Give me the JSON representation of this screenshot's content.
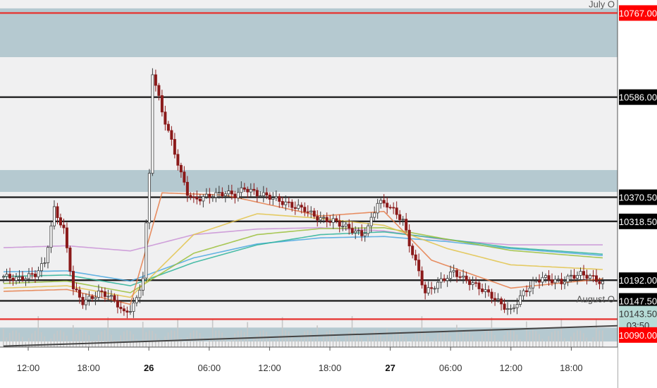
{
  "chart_data": {
    "type": "candlestick",
    "y_range": [
      10048,
      10795
    ],
    "x_ticks": [
      {
        "label": "12:00",
        "bold": false
      },
      {
        "label": "18:00",
        "bold": false
      },
      {
        "label": "26",
        "bold": true
      },
      {
        "label": "06:00",
        "bold": false
      },
      {
        "label": "12:00",
        "bold": false
      },
      {
        "label": "18:00",
        "bold": false
      },
      {
        "label": "27",
        "bold": true
      },
      {
        "label": "06:00",
        "bold": false
      },
      {
        "label": "12:00",
        "bold": false
      },
      {
        "label": "18:00",
        "bold": false
      }
    ],
    "annotations": [
      {
        "text": "July O",
        "price": 10787
      },
      {
        "text": "August O",
        "price": 10152
      }
    ],
    "zones": [
      {
        "from": 10672,
        "to": 10777,
        "color": "#b5c9d0"
      },
      {
        "from": 10382,
        "to": 10429,
        "color": "#b5c9d0"
      },
      {
        "from": 10060,
        "to": 10090,
        "color": "#b5c9d0"
      }
    ],
    "hlines": [
      {
        "price": 10767,
        "color": "#e53935"
      },
      {
        "price": 10586,
        "color": "#222222"
      },
      {
        "price": 10370.5,
        "color": "#222222"
      },
      {
        "price": 10318.5,
        "color": "#222222"
      },
      {
        "price": 10192,
        "color": "#222222"
      },
      {
        "price": 10147.5,
        "color": "#222222"
      },
      {
        "price": 10108,
        "color": "#e53935"
      }
    ],
    "price_labels": [
      {
        "text": "10767.00",
        "price": 10767,
        "bg": "#ff0000",
        "fg": "#ffffff"
      },
      {
        "text": "10586.00",
        "price": 10586,
        "bg": "#000000",
        "fg": "#ffffff"
      },
      {
        "text": "10370.50",
        "price": 10370.5,
        "bg": "#000000",
        "fg": "#ffffff"
      },
      {
        "text": "10318.50",
        "price": 10318.5,
        "bg": "#000000",
        "fg": "#ffffff"
      },
      {
        "text": "10192.00",
        "price": 10192,
        "bg": "#000000",
        "fg": "#ffffff"
      },
      {
        "text": "10147.50",
        "price": 10147.5,
        "bg": "#000000",
        "fg": "#ffffff"
      },
      {
        "text": "10143.50",
        "price": 10120,
        "bg": "#b6dcd7",
        "fg": "#333333"
      },
      {
        "text": "03:50",
        "price": 10095,
        "bg": "#b6dcd7",
        "fg": "#333333"
      },
      {
        "text": "10090.00",
        "price": 10074,
        "bg": "#ff0000",
        "fg": "#ffffff"
      }
    ],
    "close_path": [
      [
        0,
        10200
      ],
      [
        5,
        10195
      ],
      [
        10,
        10205
      ],
      [
        13,
        10230
      ],
      [
        16,
        10345
      ],
      [
        19,
        10300
      ],
      [
        22,
        10175
      ],
      [
        25,
        10145
      ],
      [
        28,
        10155
      ],
      [
        30,
        10165
      ],
      [
        33,
        10160
      ],
      [
        36,
        10140
      ],
      [
        38,
        10120
      ],
      [
        40,
        10130
      ],
      [
        42,
        10150
      ],
      [
        44,
        10200
      ],
      [
        46,
        10420
      ],
      [
        47,
        10640
      ],
      [
        50,
        10555
      ],
      [
        53,
        10490
      ],
      [
        56,
        10420
      ],
      [
        58,
        10380
      ],
      [
        60,
        10365
      ],
      [
        63,
        10370
      ],
      [
        66,
        10375
      ],
      [
        70,
        10380
      ],
      [
        73,
        10375
      ],
      [
        76,
        10390
      ],
      [
        80,
        10378
      ],
      [
        84,
        10372
      ],
      [
        88,
        10360
      ],
      [
        92,
        10350
      ],
      [
        95,
        10345
      ],
      [
        98,
        10330
      ],
      [
        101,
        10322
      ],
      [
        104,
        10320
      ],
      [
        107,
        10310
      ],
      [
        110,
        10300
      ],
      [
        113,
        10290
      ],
      [
        115,
        10305
      ],
      [
        118,
        10360
      ],
      [
        121,
        10355
      ],
      [
        124,
        10335
      ],
      [
        126,
        10320
      ],
      [
        128,
        10270
      ],
      [
        131,
        10210
      ],
      [
        133,
        10165
      ],
      [
        136,
        10180
      ],
      [
        139,
        10195
      ],
      [
        142,
        10210
      ],
      [
        145,
        10195
      ],
      [
        148,
        10185
      ],
      [
        151,
        10172
      ],
      [
        154,
        10158
      ],
      [
        157,
        10140
      ],
      [
        160,
        10125
      ],
      [
        162,
        10145
      ],
      [
        164,
        10165
      ],
      [
        167,
        10185
      ],
      [
        170,
        10198
      ],
      [
        173,
        10192
      ],
      [
        176,
        10188
      ],
      [
        179,
        10200
      ],
      [
        182,
        10205
      ],
      [
        185,
        10200
      ],
      [
        189,
        10185
      ]
    ],
    "ma_lines": [
      {
        "color": "#c992d6",
        "points": [
          [
            0,
            10262
          ],
          [
            20,
            10266
          ],
          [
            40,
            10255
          ],
          [
            60,
            10290
          ],
          [
            80,
            10302
          ],
          [
            100,
            10305
          ],
          [
            120,
            10298
          ],
          [
            140,
            10278
          ],
          [
            160,
            10268
          ],
          [
            189,
            10268
          ]
        ]
      },
      {
        "color": "#4aa8e0",
        "points": [
          [
            0,
            10210
          ],
          [
            20,
            10212
          ],
          [
            40,
            10190
          ],
          [
            60,
            10240
          ],
          [
            80,
            10270
          ],
          [
            100,
            10283
          ],
          [
            120,
            10286
          ],
          [
            140,
            10275
          ],
          [
            160,
            10260
          ],
          [
            189,
            10245
          ]
        ]
      },
      {
        "color": "#2bb39a",
        "points": [
          [
            0,
            10200
          ],
          [
            20,
            10203
          ],
          [
            40,
            10180
          ],
          [
            60,
            10230
          ],
          [
            80,
            10268
          ],
          [
            100,
            10290
          ],
          [
            120,
            10296
          ],
          [
            140,
            10280
          ],
          [
            160,
            10262
          ],
          [
            189,
            10248
          ]
        ]
      },
      {
        "color": "#9bbf3a",
        "points": [
          [
            0,
            10185
          ],
          [
            20,
            10190
          ],
          [
            40,
            10165
          ],
          [
            60,
            10250
          ],
          [
            80,
            10290
          ],
          [
            100,
            10303
          ],
          [
            120,
            10305
          ],
          [
            140,
            10280
          ],
          [
            160,
            10256
          ],
          [
            189,
            10240
          ]
        ]
      },
      {
        "color": "#e2c34a",
        "points": [
          [
            0,
            10175
          ],
          [
            20,
            10180
          ],
          [
            40,
            10155
          ],
          [
            60,
            10290
          ],
          [
            80,
            10335
          ],
          [
            100,
            10325
          ],
          [
            120,
            10310
          ],
          [
            140,
            10260
          ],
          [
            160,
            10225
          ],
          [
            189,
            10215
          ]
        ]
      },
      {
        "color": "#e57b48",
        "points": [
          [
            0,
            10168
          ],
          [
            20,
            10172
          ],
          [
            40,
            10140
          ],
          [
            50,
            10380
          ],
          [
            70,
            10375
          ],
          [
            100,
            10330
          ],
          [
            120,
            10340
          ],
          [
            135,
            10235
          ],
          [
            160,
            10175
          ],
          [
            189,
            10195
          ]
        ]
      }
    ],
    "trendline": {
      "from": [
        0,
        10050
      ],
      "to": [
        189,
        10094
      ],
      "color": "#444444"
    }
  }
}
